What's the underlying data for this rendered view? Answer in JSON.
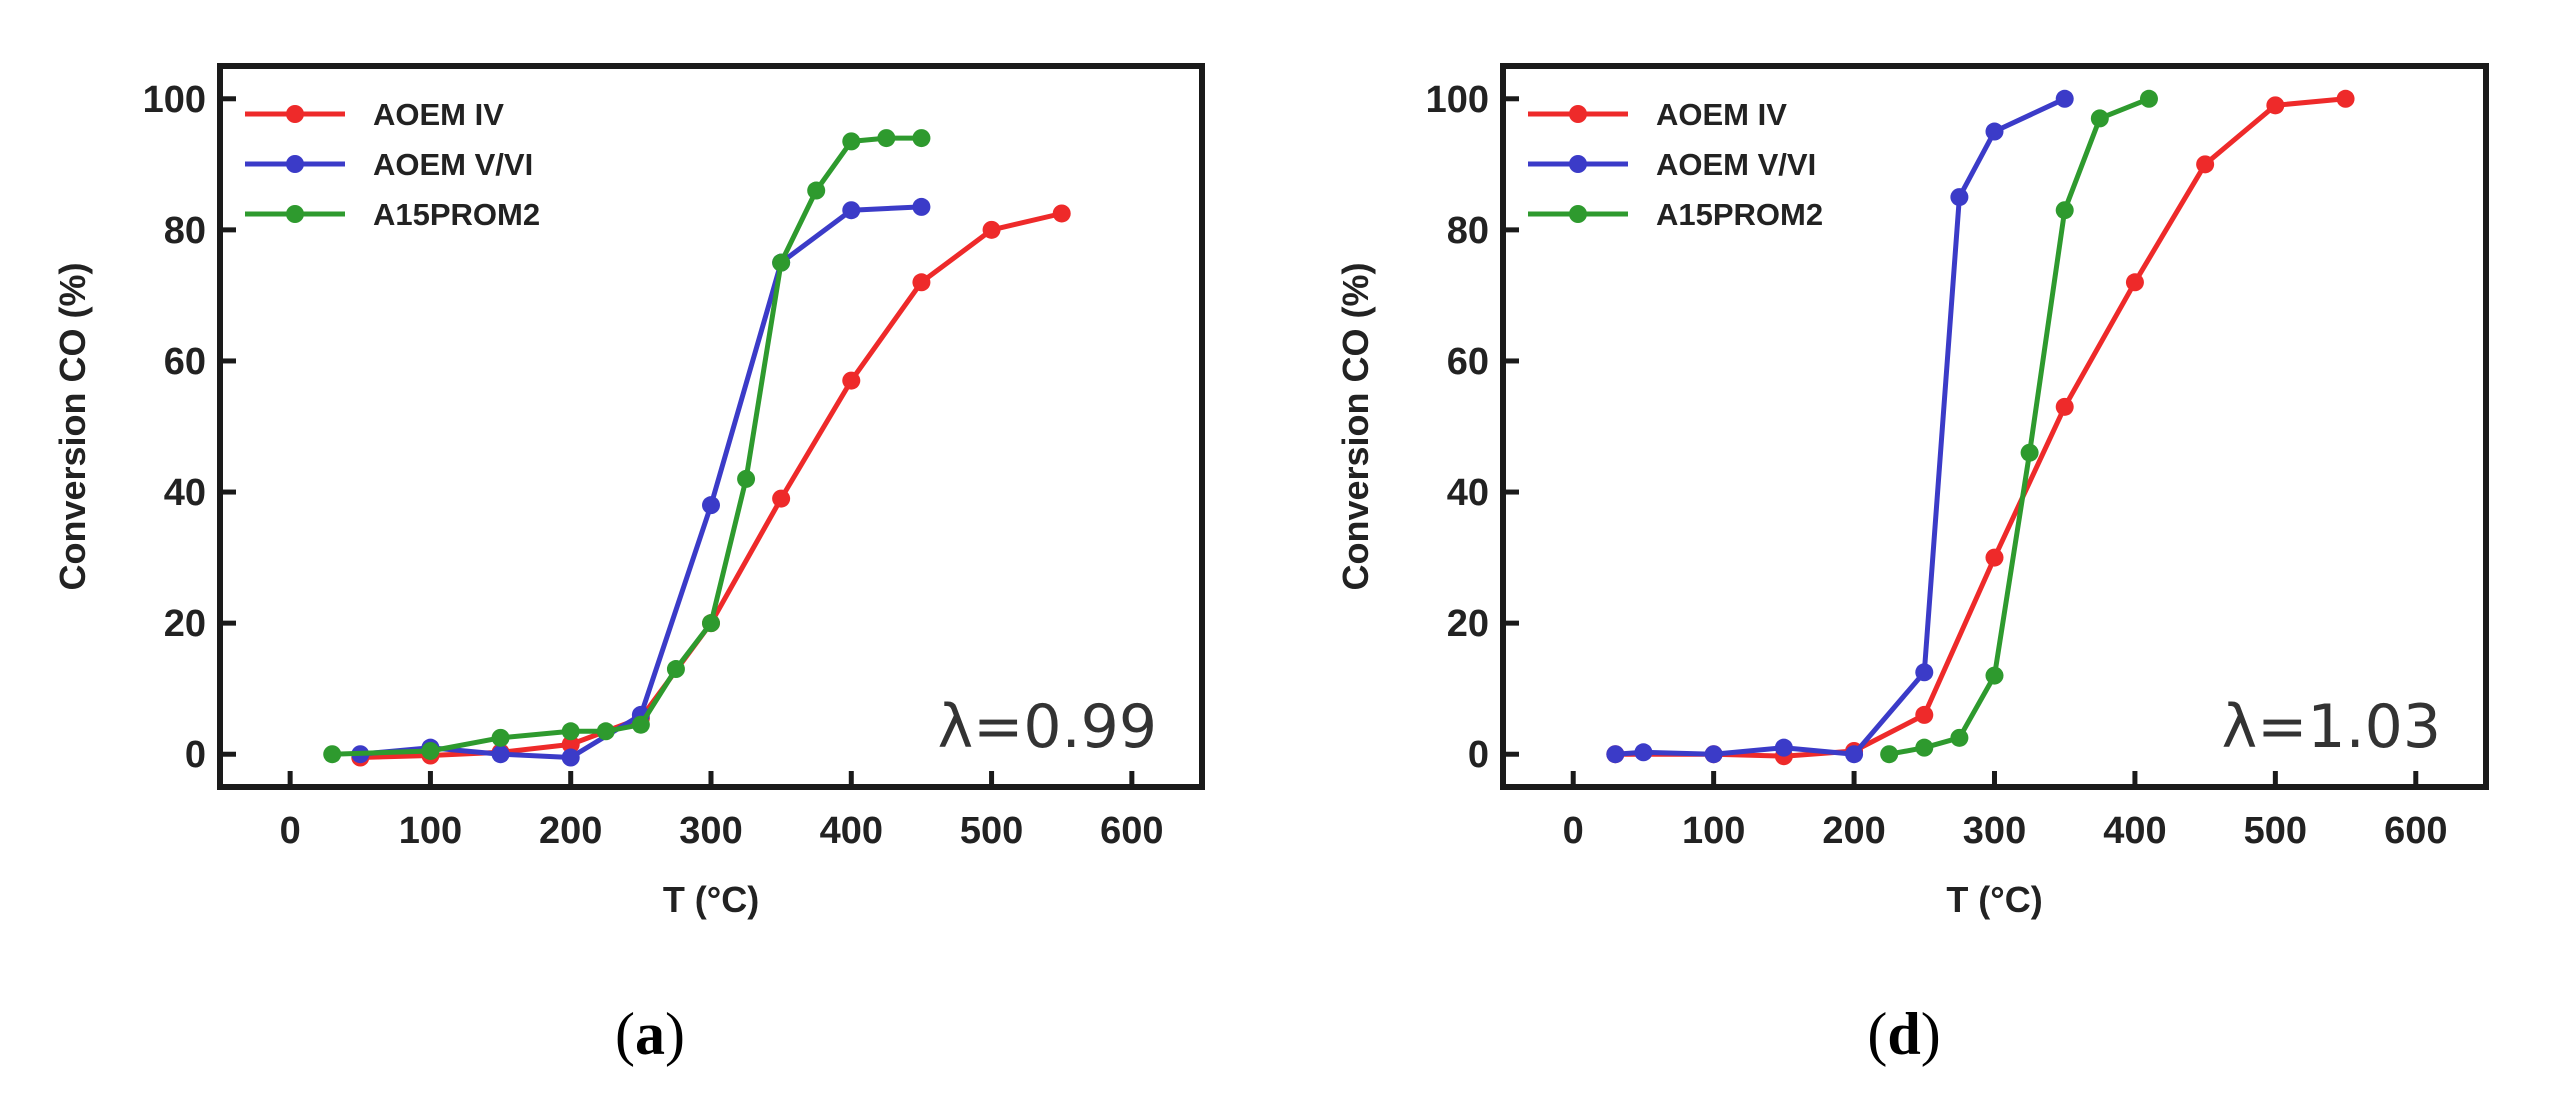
{
  "chart_data": [
    {
      "type": "line",
      "panel": "(a)",
      "panel_letter": "a",
      "annotation": "λ=0.99",
      "title": "",
      "xlabel": "T (°C)",
      "ylabel": "Conversion CO (%)",
      "xlim": [
        -50,
        650
      ],
      "ylim": [
        -5,
        105
      ],
      "xticks": [
        0,
        100,
        200,
        300,
        400,
        500,
        600
      ],
      "yticks": [
        0,
        20,
        40,
        60,
        80,
        100
      ],
      "legend_position": "top-left",
      "series": [
        {
          "name": "AOEM IV",
          "color": "#ee2a2a",
          "x": [
            50,
            100,
            150,
            200,
            250,
            300,
            350,
            400,
            450,
            500,
            550
          ],
          "y": [
            -0.5,
            -0.2,
            0.3,
            1.5,
            5.5,
            20,
            39,
            57,
            72,
            80,
            82.5
          ]
        },
        {
          "name": "AOEM V/VI",
          "color": "#3b3bc8",
          "x": [
            50,
            100,
            150,
            200,
            250,
            300,
            350,
            400,
            450
          ],
          "y": [
            0,
            1,
            0,
            -0.5,
            6,
            38,
            75,
            83,
            83.5
          ]
        },
        {
          "name": "A15PROM2",
          "color": "#2e9a2e",
          "x": [
            30,
            100,
            150,
            200,
            225,
            250,
            275,
            300,
            325,
            350,
            375,
            400,
            425,
            450
          ],
          "y": [
            0,
            0.5,
            2.5,
            3.5,
            3.5,
            4.5,
            13,
            20,
            42,
            75,
            86,
            93.5,
            94,
            94
          ]
        }
      ]
    },
    {
      "type": "line",
      "panel": "(d)",
      "panel_letter": "d",
      "annotation": "λ=1.03",
      "title": "",
      "xlabel": "T (°C)",
      "ylabel": "Conversion CO (%)",
      "xlim": [
        -50,
        650
      ],
      "ylim": [
        -5,
        105
      ],
      "xticks": [
        0,
        100,
        200,
        300,
        400,
        500,
        600
      ],
      "yticks": [
        0,
        20,
        40,
        60,
        80,
        100
      ],
      "legend_position": "top-left",
      "series": [
        {
          "name": "AOEM IV",
          "color": "#ee2a2a",
          "x": [
            30,
            100,
            150,
            200,
            250,
            300,
            350,
            400,
            450,
            500,
            550
          ],
          "y": [
            0,
            0,
            -0.3,
            0.5,
            6,
            30,
            53,
            72,
            90,
            99,
            100
          ]
        },
        {
          "name": "AOEM V/VI",
          "color": "#3b3bc8",
          "x": [
            30,
            50,
            100,
            150,
            200,
            250,
            275,
            300,
            350
          ],
          "y": [
            0,
            0.3,
            0,
            1,
            0,
            12.5,
            85,
            95,
            100
          ]
        },
        {
          "name": "A15PROM2",
          "color": "#2e9a2e",
          "x": [
            225,
            250,
            275,
            300,
            325,
            350,
            375,
            410
          ],
          "y": [
            0,
            1,
            2.5,
            12,
            46,
            83,
            97,
            100
          ]
        }
      ]
    }
  ]
}
